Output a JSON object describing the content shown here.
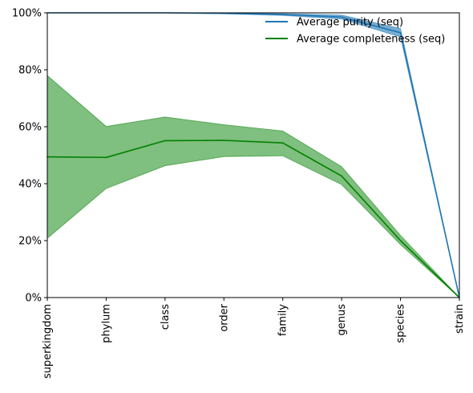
{
  "chart_data": {
    "type": "line",
    "categories": [
      "superkingdom",
      "phylum",
      "class",
      "order",
      "family",
      "genus",
      "species",
      "strain"
    ],
    "ylim": [
      0,
      1
    ],
    "yticks": [
      0,
      0.2,
      0.4,
      0.6,
      0.8,
      1.0
    ],
    "ytick_labels": [
      "0%",
      "20%",
      "40%",
      "60%",
      "80%",
      "100%"
    ],
    "grid": false,
    "legend_position": "top-right",
    "series": [
      {
        "name": "Average purity (seq)",
        "color": "#1f77b4",
        "values": [
          1.0,
          1.0,
          1.0,
          0.998,
          0.994,
          0.985,
          0.93,
          0.0
        ],
        "band_lower": [
          1.0,
          1.0,
          1.0,
          0.997,
          0.991,
          0.978,
          0.915,
          0.0
        ],
        "band_upper": [
          1.0,
          1.0,
          1.0,
          1.0,
          0.997,
          0.992,
          0.945,
          0.0
        ]
      },
      {
        "name": "Average completeness (seq)",
        "color": "#008000",
        "values": [
          0.494,
          0.492,
          0.551,
          0.552,
          0.543,
          0.427,
          0.2,
          0.0
        ],
        "band_lower": [
          0.208,
          0.383,
          0.463,
          0.495,
          0.498,
          0.397,
          0.186,
          0.0
        ],
        "band_upper": [
          0.78,
          0.601,
          0.634,
          0.607,
          0.585,
          0.46,
          0.218,
          0.0
        ]
      }
    ]
  }
}
